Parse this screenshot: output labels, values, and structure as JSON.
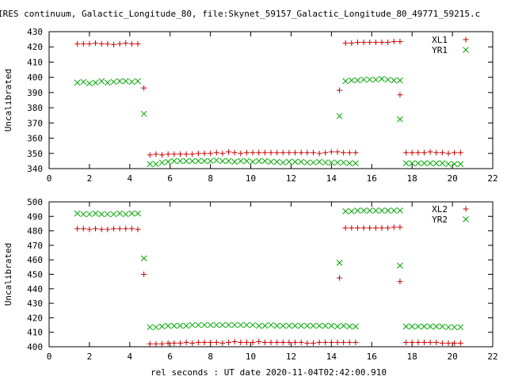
{
  "chart_data": {
    "title": "IRES continuum, Galactic_Longitude_80, file:Skynet_59157_Galactic_Longitude_80_49771_59215.c",
    "xlabel": "rel seconds : UT date 2020-11-04T02:42:00.910",
    "panels": [
      {
        "type": "scatter",
        "ylabel": "Uncalibrated",
        "xlim": [
          0,
          22
        ],
        "ylim": [
          340,
          430
        ],
        "xticks": [
          0,
          2,
          4,
          6,
          8,
          10,
          12,
          14,
          16,
          18,
          20,
          22
        ],
        "yticks": [
          340,
          350,
          360,
          370,
          380,
          390,
          400,
          410,
          420,
          430
        ],
        "legend_position": "top-right",
        "series": [
          {
            "name": "XL1",
            "marker": "plus",
            "color": "#cc0000",
            "segments": [
              {
                "x0": 1.4,
                "dx": 0.3,
                "values": [
                  422,
                  422,
                  422,
                  422.5,
                  422,
                  422,
                  421.5,
                  422,
                  422.5,
                  422,
                  422
                ]
              },
              {
                "x": [
                  4.7
                ],
                "values": [
                  393
                ]
              },
              {
                "x0": 5.0,
                "dx": 0.3,
                "values": [
                  349,
                  349.5,
                  349,
                  349.5,
                  349.5,
                  349.5,
                  349.5,
                  349.5,
                  350,
                  350,
                  350,
                  350.5,
                  350,
                  351,
                  350.5,
                  350,
                  350.5,
                  350.5,
                  350.5,
                  350.5,
                  350.5,
                  350.5,
                  350.5,
                  350.5,
                  350.5,
                  350.5,
                  350.5,
                  350.5,
                  350,
                  350.5,
                  351,
                  351,
                  350.5,
                  350.5,
                  350.5
                ]
              },
              {
                "x": [
                  14.4
                ],
                "values": [
                  391.5
                ]
              },
              {
                "x0": 14.7,
                "dx": 0.3,
                "values": [
                  422.5,
                  422.5,
                  423,
                  423,
                  423,
                  423,
                  423,
                  423,
                  423.5,
                  423.5
                ]
              },
              {
                "x": [
                  17.4
                ],
                "values": [
                  388.5
                ]
              },
              {
                "x0": 17.7,
                "dx": 0.3,
                "values": [
                  350.5,
                  350.5,
                  350.5,
                  350.5,
                  351,
                  350.5,
                  350.5,
                  350,
                  350.5,
                  350.5
                ]
              }
            ]
          },
          {
            "name": "YR1",
            "marker": "cross",
            "color": "#00aa00",
            "segments": [
              {
                "x0": 1.4,
                "dx": 0.3,
                "values": [
                  396.5,
                  397,
                  396,
                  396.5,
                  397.5,
                  396.5,
                  397,
                  397.5,
                  397.5,
                  397,
                  397.5
                ]
              },
              {
                "x": [
                  4.7
                ],
                "values": [
                  376
                ]
              },
              {
                "x0": 5.0,
                "dx": 0.3,
                "values": [
                  343,
                  343,
                  344,
                  344.5,
                  345,
                  345,
                  345,
                  345,
                  345,
                  345,
                  345,
                  345.5,
                  345,
                  345,
                  344.5,
                  345,
                  345,
                  344.5,
                  345,
                  345,
                  344.5,
                  344.5,
                  344,
                  344.5,
                  344.5,
                  344.5,
                  344,
                  344,
                  344.5,
                  344,
                  344,
                  344,
                  344,
                  343.5,
                  343.5
                ]
              },
              {
                "x": [
                  14.4
                ],
                "values": [
                  374.5
                ]
              },
              {
                "x0": 14.7,
                "dx": 0.3,
                "values": [
                  397.5,
                  398,
                  398,
                  398.5,
                  398.5,
                  398.5,
                  399,
                  398.5,
                  398,
                  398
                ]
              },
              {
                "x": [
                  17.4
                ],
                "values": [
                  372.5
                ]
              },
              {
                "x0": 17.7,
                "dx": 0.3,
                "values": [
                  343.5,
                  343.5,
                  343.5,
                  343.5,
                  343.5,
                  343.5,
                  343.5,
                  343,
                  343,
                  343
                ]
              }
            ]
          }
        ]
      },
      {
        "type": "scatter",
        "ylabel": "Uncalibrated",
        "xlim": [
          0,
          22
        ],
        "ylim": [
          400,
          500
        ],
        "xticks": [
          0,
          2,
          4,
          6,
          8,
          10,
          12,
          14,
          16,
          18,
          20,
          22
        ],
        "yticks": [
          400,
          410,
          420,
          430,
          440,
          450,
          460,
          470,
          480,
          490,
          500
        ],
        "legend_position": "top-right",
        "series": [
          {
            "name": "XL2",
            "marker": "plus",
            "color": "#cc0000",
            "segments": [
              {
                "x0": 1.4,
                "dx": 0.3,
                "values": [
                  481.5,
                  481.5,
                  481,
                  481.5,
                  481,
                  481,
                  481.5,
                  481.5,
                  481.5,
                  481.5,
                  481
                ]
              },
              {
                "x": [
                  4.7
                ],
                "values": [
                  450
                ]
              },
              {
                "x0": 5.0,
                "dx": 0.3,
                "values": [
                  402,
                  402,
                  402,
                  402.5,
                  402.5,
                  402.5,
                  403,
                  402.5,
                  403,
                  403,
                  403,
                  403,
                  402.5,
                  403,
                  403.5,
                  403,
                  403,
                  403,
                  403.5,
                  403,
                  403,
                  403,
                  403,
                  403,
                  403,
                  403,
                  402.5,
                  402.5,
                  403,
                  403,
                  403,
                  403,
                  403,
                  403,
                  403
                ]
              },
              {
                "x": [
                  14.4
                ],
                "values": [
                  447.5
                ]
              },
              {
                "x0": 14.7,
                "dx": 0.3,
                "values": [
                  482,
                  482,
                  482,
                  482,
                  482,
                  482,
                  482,
                  482,
                  482.5,
                  482.5
                ]
              },
              {
                "x": [
                  17.4
                ],
                "values": [
                  445
                ]
              },
              {
                "x0": 17.7,
                "dx": 0.3,
                "values": [
                  403,
                  403,
                  403,
                  403,
                  403,
                  403,
                  402.5,
                  402.5,
                  402.5,
                  402.5
                ]
              }
            ]
          },
          {
            "name": "YR2",
            "marker": "cross",
            "color": "#00aa00",
            "segments": [
              {
                "x0": 1.4,
                "dx": 0.3,
                "values": [
                  492,
                  491.5,
                  491.5,
                  492,
                  491.5,
                  491.5,
                  491.5,
                  492,
                  491.5,
                  492,
                  492
                ]
              },
              {
                "x": [
                  4.7
                ],
                "values": [
                  461
                ]
              },
              {
                "x0": 5.0,
                "dx": 0.3,
                "values": [
                  413.5,
                  413.5,
                  414,
                  414.5,
                  414.5,
                  414.5,
                  414.5,
                  415,
                  415,
                  415,
                  415,
                  415,
                  415,
                  415,
                  415,
                  415,
                  415,
                  415,
                  414.5,
                  414.5,
                  415,
                  414.5,
                  414.5,
                  414.5,
                  414.5,
                  414.5,
                  414.5,
                  414.5,
                  414.5,
                  414.5,
                  414.5,
                  414,
                  414.5,
                  414,
                  414
                ]
              },
              {
                "x": [
                  14.4
                ],
                "values": [
                  458
                ]
              },
              {
                "x0": 14.7,
                "dx": 0.3,
                "values": [
                  493.5,
                  493.5,
                  494,
                  494,
                  494,
                  494,
                  494,
                  494,
                  494,
                  494
                ]
              },
              {
                "x": [
                  17.4
                ],
                "values": [
                  456
                ]
              },
              {
                "x0": 17.7,
                "dx": 0.3,
                "values": [
                  414,
                  414,
                  414,
                  414,
                  414,
                  414,
                  414,
                  413.5,
                  413.5,
                  413.5
                ]
              }
            ]
          }
        ]
      }
    ]
  }
}
